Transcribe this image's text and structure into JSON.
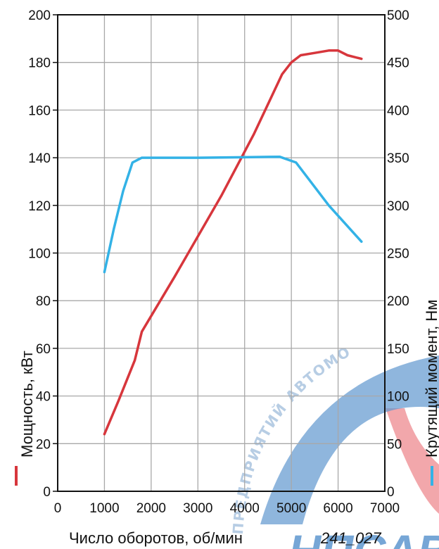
{
  "chart_data": {
    "type": "line",
    "xlabel": "Число оборотов, об/мин",
    "ylabel_left": "Мощность, кВт",
    "ylabel_right": "Крутящий момент, Нм",
    "xlim": [
      0,
      7000
    ],
    "ylim_left": [
      0,
      200
    ],
    "ylim_right": [
      0,
      500
    ],
    "x_ticks": [
      "0",
      "1000",
      "2000",
      "3000",
      "4000",
      "5000",
      "6000",
      "7000"
    ],
    "y_left_ticks": [
      "0",
      "20",
      "40",
      "60",
      "80",
      "100",
      "120",
      "140",
      "160",
      "180",
      "200"
    ],
    "y_right_ticks": [
      "0",
      "50",
      "100",
      "150",
      "200",
      "250",
      "300",
      "350",
      "400",
      "450",
      "500"
    ],
    "grid": true,
    "series": [
      {
        "axis": "left",
        "color": "#d7363c",
        "x": [
          1000,
          1300,
          1650,
          1800,
          2500,
          3500,
          4200,
          4800,
          5000,
          5200,
          5500,
          5800,
          6000,
          6200,
          6500
        ],
        "y": [
          24,
          38,
          55,
          67,
          90,
          124,
          150,
          175,
          180,
          183,
          184,
          185,
          185,
          183,
          181.5
        ]
      },
      {
        "axis": "right",
        "color": "#33b2e6",
        "x": [
          1000,
          1200,
          1400,
          1600,
          1800,
          2000,
          3000,
          4000,
          4750,
          5100,
          5800,
          6500
        ],
        "y": [
          230,
          275,
          315,
          345,
          350,
          350,
          350,
          350.5,
          351,
          345,
          300,
          262
        ]
      }
    ]
  },
  "figure_code": "241_027",
  "watermark": {
    "arc_text": "ПРЕДПРИЯТИЙ АВТОМО",
    "big_text": "НПСАВ",
    "colors": {
      "blue": "#5f97cf",
      "red": "#ea6d73"
    }
  }
}
